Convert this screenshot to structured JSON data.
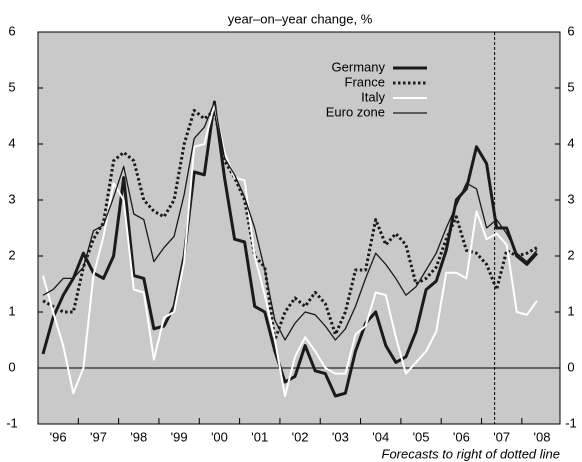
{
  "chart_data": {
    "type": "line",
    "title": "year–on–year change, %",
    "note": "Forecasts to right of dotted line",
    "categories": [
      null,
      "'96",
      null,
      null,
      null,
      "'97",
      null,
      null,
      null,
      "'98",
      null,
      null,
      null,
      "'99",
      null,
      null,
      null,
      "'00",
      null,
      null,
      null,
      "'01",
      null,
      null,
      null,
      "'02",
      null,
      null,
      null,
      "'03",
      null,
      null,
      null,
      "'04",
      null,
      null,
      null,
      "'05",
      null,
      null,
      null,
      "'06",
      null,
      null,
      null,
      "'07",
      null,
      null,
      null,
      "'08"
    ],
    "ylim": [
      -1,
      6
    ],
    "yticks": [
      -1,
      0,
      1,
      2,
      3,
      4,
      5,
      6
    ],
    "series": [
      {
        "name": "Germany",
        "color": "#1a1a1a",
        "line_style": "solid",
        "line_width": 3,
        "values": [
          0.25,
          0.9,
          1.3,
          1.6,
          2.05,
          1.7,
          1.6,
          2.0,
          3.4,
          1.65,
          1.6,
          0.7,
          0.75,
          1.1,
          2.0,
          3.5,
          3.45,
          4.75,
          3.4,
          2.3,
          2.25,
          1.1,
          1.0,
          0.3,
          -0.25,
          -0.15,
          0.4,
          -0.05,
          -0.1,
          -0.5,
          -0.45,
          0.3,
          0.8,
          1.0,
          0.4,
          0.1,
          0.2,
          0.65,
          1.4,
          1.55,
          2.1,
          3.0,
          3.2,
          3.95,
          3.65,
          2.5,
          2.5,
          2.0,
          1.85,
          2.05
        ]
      },
      {
        "name": "France",
        "color": "#1a1a1a",
        "line_style": "dotted",
        "line_width": 3,
        "values": [
          1.2,
          1.1,
          1.0,
          1.0,
          1.8,
          2.3,
          2.6,
          3.7,
          3.85,
          3.7,
          3.0,
          2.8,
          2.7,
          3.0,
          4.0,
          4.6,
          4.45,
          4.6,
          3.7,
          3.4,
          3.0,
          2.0,
          1.8,
          0.5,
          1.0,
          1.25,
          1.1,
          1.35,
          1.15,
          0.6,
          1.0,
          1.75,
          1.75,
          2.65,
          2.2,
          2.4,
          2.2,
          1.5,
          1.6,
          1.8,
          2.3,
          2.7,
          2.1,
          2.05,
          1.85,
          1.4,
          2.1,
          2.0,
          2.05,
          2.15
        ]
      },
      {
        "name": "Italy",
        "color": "#ffffff",
        "line_style": "solid",
        "line_width": 2,
        "values": [
          1.65,
          1.0,
          0.4,
          -0.45,
          0.0,
          1.65,
          2.35,
          3.3,
          3.0,
          1.4,
          1.35,
          0.15,
          0.9,
          1.0,
          1.9,
          3.95,
          4.0,
          4.7,
          3.85,
          3.4,
          3.35,
          2.0,
          1.3,
          0.5,
          -0.5,
          0.2,
          0.55,
          0.3,
          0.0,
          -0.1,
          -0.1,
          0.6,
          0.75,
          1.35,
          1.3,
          0.55,
          -0.1,
          0.1,
          0.3,
          0.65,
          1.7,
          1.7,
          1.6,
          2.8,
          2.3,
          2.4,
          2.2,
          1.0,
          0.95,
          1.2
        ]
      },
      {
        "name": "Euro zone",
        "color": "#1a1a1a",
        "line_style": "solid",
        "line_width": 1.3,
        "values": [
          1.3,
          1.4,
          1.6,
          1.6,
          1.8,
          2.45,
          2.55,
          3.05,
          3.6,
          2.75,
          2.65,
          1.9,
          2.15,
          2.35,
          3.1,
          4.1,
          4.3,
          4.75,
          3.75,
          3.45,
          3.05,
          2.5,
          1.75,
          0.85,
          0.5,
          0.8,
          1.0,
          0.95,
          0.75,
          0.5,
          0.7,
          1.1,
          1.6,
          2.05,
          1.85,
          1.6,
          1.3,
          1.45,
          1.75,
          2.05,
          2.5,
          2.9,
          3.3,
          3.2,
          2.5,
          2.65,
          2.4,
          2.05,
          1.9,
          2.1
        ]
      }
    ],
    "legend": "upper center",
    "zero_line": true
  }
}
